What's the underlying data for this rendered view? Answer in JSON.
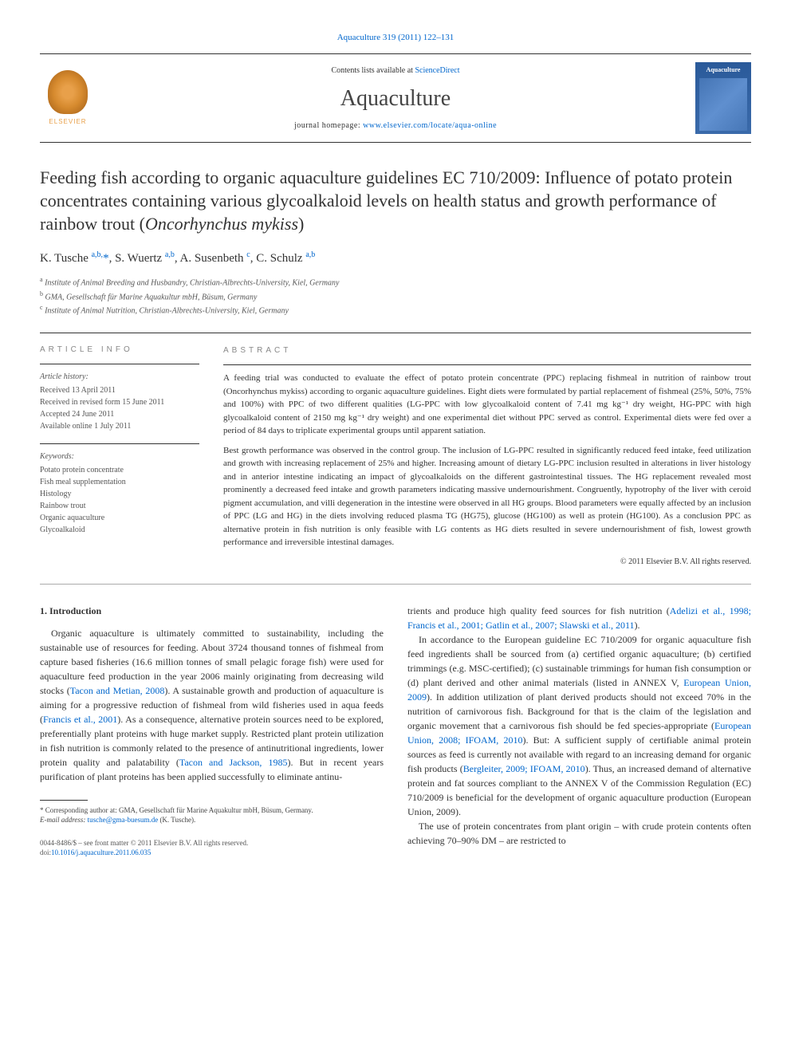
{
  "journal_ref": "Aquaculture 319 (2011) 122–131",
  "masthead": {
    "contents_prefix": "Contents lists available at ",
    "contents_link": "ScienceDirect",
    "journal_name": "Aquaculture",
    "homepage_prefix": "journal homepage: ",
    "homepage_link": "www.elsevier.com/locate/aqua-online",
    "publisher_name": "ELSEVIER",
    "cover_title": "Aquaculture"
  },
  "title": "Feeding fish according to organic aquaculture guidelines EC 710/2009: Influence of potato protein concentrates containing various glycoalkaloid levels on health status and growth performance of rainbow trout (",
  "title_species": "Oncorhynchus mykiss",
  "title_close": ")",
  "authors_html": "K. Tusche <sup>a,b,</sup><span class='star'>*</span>, S. Wuertz <sup>a,b</sup>, A. Susenbeth <sup>c</sup>, C. Schulz <sup>a,b</sup>",
  "affiliations": {
    "a": "Institute of Animal Breeding and Husbandry, Christian-Albrechts-University, Kiel, Germany",
    "b": "GMA, Gesellschaft für Marine Aquakultur mbH, Büsum, Germany",
    "c": "Institute of Animal Nutrition, Christian-Albrechts-University, Kiel, Germany"
  },
  "info": {
    "heading": "ARTICLE INFO",
    "history_label": "Article history:",
    "received": "Received 13 April 2011",
    "revised": "Received in revised form 15 June 2011",
    "accepted": "Accepted 24 June 2011",
    "online": "Available online 1 July 2011",
    "keywords_label": "Keywords:",
    "keywords": [
      "Potato protein concentrate",
      "Fish meal supplementation",
      "Histology",
      "Rainbow trout",
      "Organic aquaculture",
      "Glycoalkaloid"
    ]
  },
  "abstract": {
    "heading": "ABSTRACT",
    "p1": "A feeding trial was conducted to evaluate the effect of potato protein concentrate (PPC) replacing fishmeal in nutrition of rainbow trout (Oncorhynchus mykiss) according to organic aquaculture guidelines. Eight diets were formulated by partial replacement of fishmeal (25%, 50%, 75% and 100%) with PPC of two different qualities (LG-PPC with low glycoalkaloid content of 7.41 mg kg⁻¹ dry weight, HG-PPC with high glycoalkaloid content of 2150 mg kg⁻¹ dry weight) and one experimental diet without PPC served as control. Experimental diets were fed over a period of 84 days to triplicate experimental groups until apparent satiation.",
    "p2": "Best growth performance was observed in the control group. The inclusion of LG-PPC resulted in significantly reduced feed intake, feed utilization and growth with increasing replacement of 25% and higher. Increasing amount of dietary LG-PPC inclusion resulted in alterations in liver histology and in anterior intestine indicating an impact of glycoalkaloids on the different gastrointestinal tissues. The HG replacement revealed most prominently a decreased feed intake and growth parameters indicating massive undernourishment. Congruently, hypotrophy of the liver with ceroid pigment accumulation, and villi degeneration in the intestine were observed in all HG groups. Blood parameters were equally affected by an inclusion of PPC (LG and HG) in the diets involving reduced plasma TG (HG75), glucose (HG100) as well as protein (HG100). As a conclusion PPC as alternative protein in fish nutrition is only feasible with LG contents as HG diets resulted in severe undernourishment of fish, lowest growth performance and irreversible intestinal damages.",
    "copyright": "© 2011 Elsevier B.V. All rights reserved."
  },
  "body": {
    "section_heading": "1. Introduction",
    "left_paragraphs": [
      "Organic aquaculture is ultimately committed to sustainability, including the sustainable use of resources for feeding. About 3724 thousand tonnes of fishmeal from capture based fisheries (16.6 million tonnes of small pelagic forage fish) were used for aquaculture feed production in the year 2006 mainly originating from decreasing wild stocks (Tacon and Metian, 2008). A sustainable growth and production of aquaculture is aiming for a progressive reduction of fishmeal from wild fisheries used in aqua feeds (Francis et al., 2001). As a consequence, alternative protein sources need to be explored, preferentially plant proteins with huge market supply. Restricted plant protein utilization in fish nutrition is commonly related to the presence of antinutritional ingredients, lower protein quality and palatability (Tacon and Jackson, 1985). But in recent years purification of plant proteins has been applied successfully to eliminate antinu-"
    ],
    "left_links": {
      "l1": "Tacon and Metian, 2008",
      "l2": "Francis et al., 2001",
      "l3": "Tacon and Jackson, 1985"
    },
    "right_paragraphs": [
      "trients and produce high quality feed sources for fish nutrition (Adelizi et al., 1998; Francis et al., 2001; Gatlin et al., 2007; Slawski et al., 2011).",
      "In accordance to the European guideline EC 710/2009 for organic aquaculture fish feed ingredients shall be sourced from (a) certified organic aquaculture; (b) certified trimmings (e.g. MSC-certified); (c) sustainable trimmings for human fish consumption or (d) plant derived and other animal materials (listed in ANNEX V, European Union, 2009). In addition utilization of plant derived products should not exceed 70% in the nutrition of carnivorous fish. Background for that is the claim of the legislation and organic movement that a carnivorous fish should be fed species-appropriate (European Union, 2008; IFOAM, 2010). But: A sufficient supply of certifiable animal protein sources as feed is currently not available with regard to an increasing demand for organic fish products (Bergleiter, 2009; IFOAM, 2010). Thus, an increased demand of alternative protein and fat sources compliant to the ANNEX V of the Commission Regulation (EC) 710/2009 is beneficial for the development of organic aquaculture production (European Union, 2009).",
      "The use of protein concentrates from plant origin – with crude protein contents often achieving 70–90% DM – are restricted to"
    ],
    "right_links": {
      "r1": "Adelizi et al., 1998; Francis et al., 2001; Gatlin et al., 2007; Slawski et al., 2011",
      "r2": "European Union, 2009",
      "r3": "European Union, 2008; IFOAM, 2010",
      "r4": "Bergleiter, 2009; IFOAM, 2010",
      "r5": "European Union, 2009"
    }
  },
  "footnote": {
    "corr": "* Corresponding author at: GMA, Gesellschaft für Marine Aquakultur mbH, Büsum, Germany.",
    "email_label": "E-mail address: ",
    "email": "tusche@gma-buesum.de",
    "email_suffix": " (K. Tusche)."
  },
  "footer": {
    "issn": "0044-8486/$ – see front matter © 2011 Elsevier B.V. All rights reserved.",
    "doi_label": "doi:",
    "doi": "10.1016/j.aquaculture.2011.06.035"
  },
  "colors": {
    "link": "#0066cc",
    "text": "#333333",
    "muted": "#888888",
    "elsevier": "#e8a04a",
    "cover": "#2a5a9a"
  },
  "typography": {
    "title_fontsize": 22,
    "journal_name_fontsize": 28,
    "body_fontsize": 12,
    "abstract_fontsize": 11,
    "info_fontsize": 10,
    "footnote_fontsize": 9
  }
}
